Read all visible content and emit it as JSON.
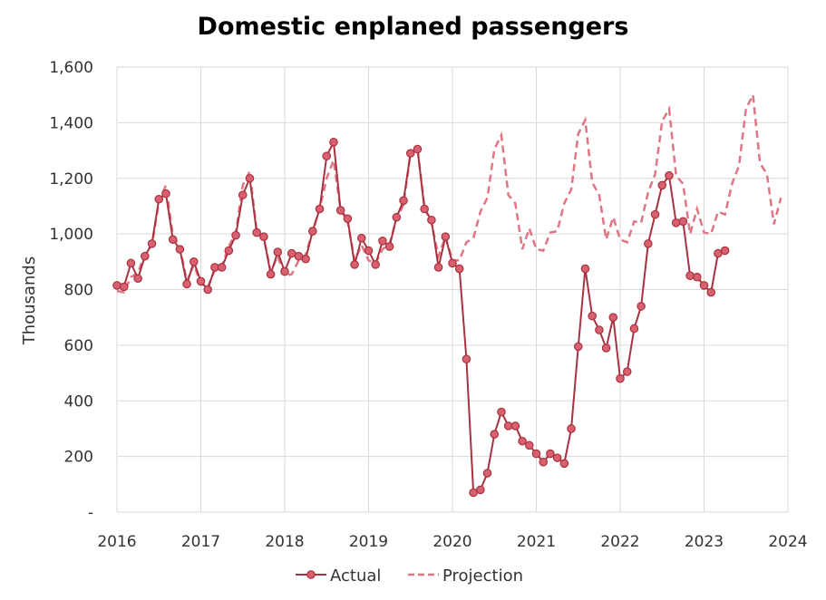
{
  "chart_data": {
    "type": "line",
    "title": "Domestic enplaned passengers",
    "xlabel": "",
    "ylabel": "Thousands",
    "xlim": [
      2016,
      2024
    ],
    "ylim": [
      0,
      1600
    ],
    "x_ticks": [
      "2016",
      "2017",
      "2018",
      "2019",
      "2020",
      "2021",
      "2022",
      "2023",
      "2024"
    ],
    "y_ticks": [
      "-",
      "200",
      "400",
      "600",
      "800",
      "1,000",
      "1,200",
      "1,400",
      "1,600"
    ],
    "grid": true,
    "legend_position": "bottom",
    "series": [
      {
        "name": "Actual",
        "color": "#a83240",
        "marker_color": "#d9606e",
        "start": "2016-01",
        "values": [
          815,
          810,
          895,
          840,
          920,
          965,
          1125,
          1145,
          980,
          945,
          820,
          900,
          830,
          800,
          880,
          880,
          940,
          995,
          1140,
          1200,
          1005,
          990,
          855,
          935,
          865,
          930,
          920,
          910,
          1010,
          1090,
          1280,
          1330,
          1085,
          1055,
          890,
          985,
          940,
          890,
          975,
          955,
          1060,
          1120,
          1290,
          1305,
          1090,
          1050,
          880,
          990,
          895,
          875,
          550,
          70,
          80,
          140,
          280,
          360,
          310,
          310,
          255,
          240,
          210,
          180,
          210,
          195,
          175,
          300,
          595,
          875,
          705,
          655,
          590,
          700,
          480,
          505,
          660,
          740,
          965,
          1070,
          1175,
          1210,
          1040,
          1045,
          850,
          845,
          815,
          790,
          930,
          940
        ]
      },
      {
        "name": "Projection",
        "color": "#e07585",
        "start": "2016-01",
        "values": [
          795,
          790,
          845,
          860,
          930,
          960,
          1115,
          1175,
          995,
          955,
          830,
          890,
          820,
          810,
          870,
          885,
          955,
          1005,
          1175,
          1225,
          1010,
          985,
          865,
          920,
          850,
          855,
          905,
          925,
          1010,
          1090,
          1200,
          1265,
          1085,
          1045,
          905,
          960,
          905,
          895,
          945,
          965,
          1055,
          1105,
          1290,
          1310,
          1095,
          1040,
          920,
          990,
          905,
          905,
          970,
          985,
          1080,
          1130,
          1305,
          1355,
          1140,
          1110,
          945,
          1020,
          945,
          940,
          1005,
          1010,
          1110,
          1160,
          1360,
          1410,
          1185,
          1140,
          980,
          1060,
          980,
          970,
          1045,
          1040,
          1150,
          1215,
          1405,
          1450,
          1210,
          1180,
          1000,
          1090,
          1005,
          1000,
          1080,
          1070,
          1180,
          1245,
          1450,
          1500,
          1255,
          1215,
          1035,
          1130
        ]
      }
    ]
  }
}
